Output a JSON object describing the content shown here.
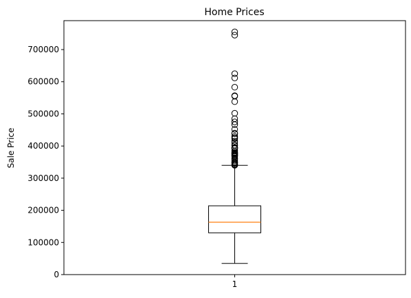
{
  "chart_data": {
    "type": "box",
    "title": "Home Prices",
    "xlabel": "",
    "ylabel": "Sale Price",
    "categories": [
      "1"
    ],
    "ylim": [
      0,
      790000
    ],
    "yticks": [
      0,
      100000,
      200000,
      300000,
      400000,
      500000,
      600000,
      700000
    ],
    "ytick_labels": [
      "0",
      "100000",
      "200000",
      "300000",
      "400000",
      "500000",
      "600000",
      "700000"
    ],
    "box": {
      "whisker_low": 34900,
      "q1": 129975,
      "median": 163000,
      "q3": 214000,
      "whisker_high": 340000
    },
    "outliers": [
      755000,
      745000,
      625000,
      611657,
      582933,
      556581,
      555000,
      538000,
      501837,
      485000,
      475000,
      466500,
      451950,
      440000,
      438780,
      430000,
      426000,
      423000,
      415298,
      410000,
      402861,
      402000,
      395000,
      394617,
      394432,
      392500,
      392000,
      385000,
      384000,
      380000,
      378500,
      377500,
      377426,
      375000,
      372500,
      372402,
      370878,
      369900,
      367294,
      363000,
      360000,
      359100,
      354000,
      350000,
      349000,
      348000,
      345000,
      342643,
      341000,
      340000
    ],
    "colors": {
      "median": "#ff7f0e",
      "box": "#000000"
    },
    "grid": false
  }
}
